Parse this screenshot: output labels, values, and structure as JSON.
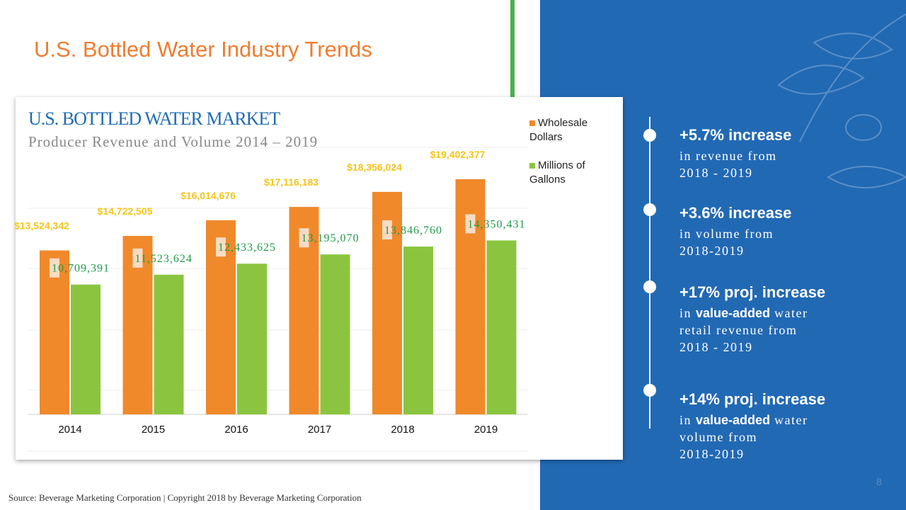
{
  "slide": {
    "title": "U.S. Bottled Water Industry Trends",
    "page_number": "8",
    "source": "Source: Beverage Marketing Corporation | Copyright 2018 by Beverage Marketing Corporation"
  },
  "colors": {
    "accent": "#EE7D31",
    "panel": "#2269B4",
    "orange": "#F0892A",
    "green": "#8BC53F",
    "label_gold": "#F5C518",
    "label_green": "#1E9A4A"
  },
  "chart_data": {
    "type": "bar",
    "title": "U.S. BOTTLED WATER MARKET",
    "subtitle": "Producer Revenue and Volume 2014 – 2019",
    "categories": [
      "2014",
      "2015",
      "2016",
      "2017",
      "2018",
      "2019"
    ],
    "series": [
      {
        "name": "Wholesale Dollars",
        "values": [
          13524342,
          14722505,
          16014676,
          17116183,
          18356024,
          19402377
        ],
        "labels": [
          "$13,524,342",
          "$14,722,505",
          "$16,014,676",
          "$17,116,183",
          "$18,356,024",
          "$19,402,377"
        ]
      },
      {
        "name": "Millions of Gallons",
        "values": [
          10709391,
          11523624,
          12433625,
          13195070,
          13846760,
          14350431
        ],
        "labels": [
          "10,709,391",
          "11,523,624",
          "12,433,625",
          "13,195,070",
          "13,846,760",
          "14,350,431"
        ]
      }
    ],
    "legend": {
      "position": "top-right",
      "items": [
        "Wholesale",
        "Dollars",
        "Millions of",
        "Gallons"
      ]
    },
    "ylim": [
      0,
      20000000
    ],
    "grid": true
  },
  "stats": [
    {
      "headline": "+5.7% increase",
      "pre": "in revenue from",
      "bold": "",
      "post": "",
      "lines": [
        "2018 - 2019"
      ]
    },
    {
      "headline": "+3.6% increase",
      "pre": "in volume from",
      "bold": "",
      "post": "",
      "lines": [
        "2018-2019"
      ]
    },
    {
      "headline": "+17% proj. increase",
      "pre": "in ",
      "bold": "value-added",
      "post": " water",
      "lines": [
        "retail revenue from",
        "2018 - 2019"
      ]
    },
    {
      "headline": "+14% proj. increase",
      "pre": "in ",
      "bold": "value-added",
      "post": " water",
      "lines": [
        "volume from",
        "2018-2019"
      ]
    }
  ]
}
